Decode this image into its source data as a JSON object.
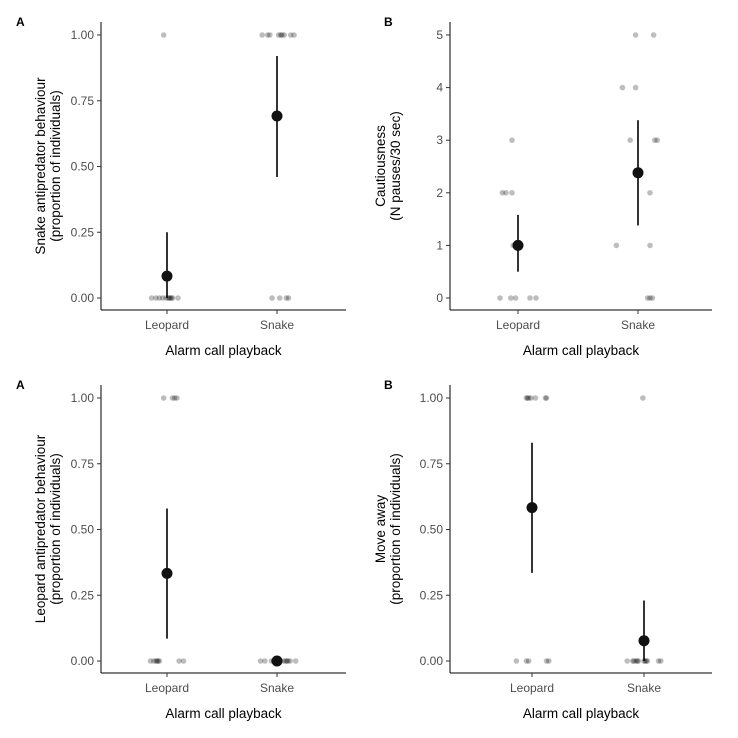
{
  "chart_data": [
    {
      "type": "scatter",
      "panel_label": "A",
      "xlabel": "Alarm call playback",
      "ylabel_lines": [
        "Snake antipredator behaviour",
        "(proportion of individuals)"
      ],
      "categories": [
        "Leopard",
        "Snake"
      ],
      "yticks": [
        "0.00",
        "0.25",
        "0.50",
        "0.75",
        "1.00"
      ],
      "ylim": [
        0,
        1
      ],
      "summary": [
        {
          "category": "Leopard",
          "mean": 0.083,
          "lower": 0.0,
          "upper": 0.25
        },
        {
          "category": "Snake",
          "mean": 0.692,
          "lower": 0.46,
          "upper": 0.92
        }
      ],
      "observations": [
        {
          "category": "Leopard",
          "values": [
            1,
            0,
            0,
            0,
            0,
            0,
            0,
            0,
            0,
            0,
            0,
            0
          ],
          "offsets": [
            -0.06,
            -0.28,
            -0.2,
            -0.14,
            -0.08,
            -0.02,
            0.02,
            0.04,
            0.06,
            0.08,
            0.1,
            0.2
          ]
        },
        {
          "category": "Snake",
          "values": [
            1,
            1,
            1,
            1,
            1,
            1,
            1,
            1,
            1,
            0,
            0,
            0,
            0
          ],
          "offsets": [
            -0.27,
            -0.17,
            -0.13,
            0.03,
            0.07,
            0.09,
            0.13,
            0.25,
            0.31,
            -0.09,
            0.05,
            0.17,
            0.21
          ]
        }
      ]
    },
    {
      "type": "scatter",
      "panel_label": "B",
      "xlabel": "Alarm call playback",
      "ylabel_lines": [
        "Cautiousness",
        "(N pauses/30 sec)"
      ],
      "categories": [
        "Leopard",
        "Snake"
      ],
      "yticks": [
        "0",
        "1",
        "2",
        "3",
        "4",
        "5"
      ],
      "ylim": [
        0,
        5
      ],
      "summary": [
        {
          "category": "Leopard",
          "mean": 1.0,
          "lower": 0.5,
          "upper": 1.58
        },
        {
          "category": "Snake",
          "mean": 2.38,
          "lower": 1.38,
          "upper": 3.38
        }
      ],
      "observations": [
        {
          "category": "Leopard",
          "values": [
            3,
            2,
            2,
            2,
            1,
            1,
            0,
            0,
            0,
            0,
            0
          ],
          "offsets": [
            -0.1,
            -0.26,
            -0.2,
            -0.1,
            -0.08,
            -0.04,
            -0.3,
            -0.12,
            -0.04,
            0.2,
            0.3
          ]
        },
        {
          "category": "Snake",
          "values": [
            5,
            5,
            4,
            4,
            3,
            3,
            3,
            2,
            1,
            1,
            0,
            0,
            0
          ],
          "offsets": [
            -0.04,
            0.26,
            -0.26,
            -0.04,
            -0.13,
            0.28,
            0.32,
            0.2,
            -0.36,
            0.2,
            0.16,
            0.2,
            0.24
          ]
        }
      ]
    },
    {
      "type": "scatter",
      "panel_label": "A",
      "xlabel": "Alarm call playback",
      "ylabel_lines": [
        "Leopard antipredator behaviour",
        "(proportion of individuals)"
      ],
      "categories": [
        "Leopard",
        "Snake"
      ],
      "yticks": [
        "0.00",
        "0.25",
        "0.50",
        "0.75",
        "1.00"
      ],
      "ylim": [
        0,
        1
      ],
      "summary": [
        {
          "category": "Leopard",
          "mean": 0.333,
          "lower": 0.085,
          "upper": 0.58
        },
        {
          "category": "Snake",
          "mean": 0.0,
          "lower": 0.0,
          "upper": 0.0
        }
      ],
      "observations": [
        {
          "category": "Leopard",
          "values": [
            1,
            1,
            1,
            1,
            0,
            0,
            0,
            0,
            0,
            0,
            0,
            0
          ],
          "offsets": [
            -0.06,
            0.1,
            0.14,
            0.18,
            -0.3,
            -0.24,
            -0.2,
            -0.18,
            -0.16,
            -0.14,
            0.22,
            0.3
          ]
        },
        {
          "category": "Snake",
          "values": [
            0,
            0,
            0,
            0,
            0,
            0,
            0,
            0,
            0,
            0,
            0,
            0
          ],
          "offsets": [
            -0.3,
            -0.22,
            -0.1,
            -0.06,
            -0.02,
            0.06,
            0.12,
            0.16,
            0.18,
            0.2,
            0.24,
            0.34
          ]
        }
      ]
    },
    {
      "type": "scatter",
      "panel_label": "B",
      "xlabel": "Alarm call playback",
      "ylabel_lines": [
        "Move away",
        "(proportion of individuals)"
      ],
      "categories": [
        "Leopard",
        "Snake"
      ],
      "yticks": [
        "0.00",
        "0.25",
        "0.50",
        "0.75",
        "1.00"
      ],
      "ylim": [
        0,
        1
      ],
      "summary": [
        {
          "category": "Leopard",
          "mean": 0.583,
          "lower": 0.335,
          "upper": 0.83
        },
        {
          "category": "Snake",
          "mean": 0.077,
          "lower": 0.0,
          "upper": 0.23
        }
      ],
      "observations": [
        {
          "category": "Leopard",
          "values": [
            1,
            1,
            1,
            1,
            1,
            1,
            1,
            0,
            0,
            0,
            0,
            0
          ],
          "offsets": [
            -0.1,
            -0.08,
            -0.06,
            -0.02,
            0.06,
            0.24,
            0.26,
            -0.28,
            -0.1,
            -0.06,
            0.26,
            0.3
          ]
        },
        {
          "category": "Snake",
          "values": [
            1,
            0,
            0,
            0,
            0,
            0,
            0,
            0,
            0,
            0,
            0,
            0,
            0
          ],
          "offsets": [
            -0.02,
            -0.3,
            -0.2,
            -0.18,
            -0.14,
            -0.12,
            -0.1,
            0.0,
            0.02,
            0.04,
            0.06,
            0.26,
            0.3
          ]
        }
      ]
    }
  ]
}
